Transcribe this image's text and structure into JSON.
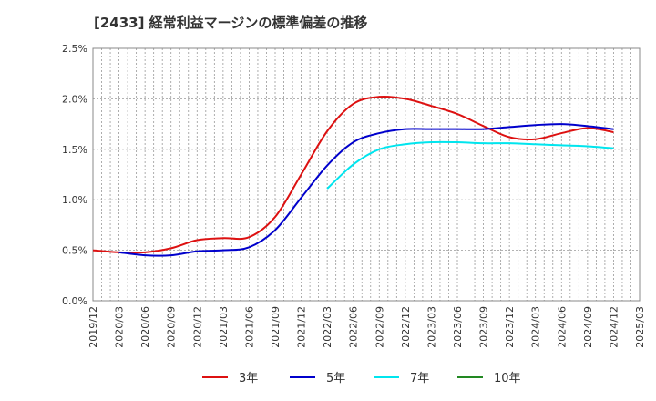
{
  "chart_data": {
    "type": "line",
    "title": "[2433]  経常利益マージンの標準偏差の推移",
    "xlabel": "",
    "ylabel": "",
    "x": [
      "2019/12",
      "2020/03",
      "2020/06",
      "2020/09",
      "2020/12",
      "2021/03",
      "2021/06",
      "2021/09",
      "2021/12",
      "2022/03",
      "2022/06",
      "2022/09",
      "2022/12",
      "2023/03",
      "2023/06",
      "2023/09",
      "2023/12",
      "2024/03",
      "2024/06",
      "2024/09",
      "2024/12",
      "2025/03"
    ],
    "ylim": [
      0,
      2.5
    ],
    "yticks": [
      0,
      0.5,
      1.0,
      1.5,
      2.0,
      2.5
    ],
    "ytick_labels": [
      "0.0%",
      "0.5%",
      "1.0%",
      "1.5%",
      "2.0%",
      "2.5%"
    ],
    "grid": "on",
    "legend_position": "bottom",
    "series": [
      {
        "name": "3年",
        "color": "#dd1111",
        "values": [
          0.5,
          0.48,
          0.48,
          0.52,
          0.6,
          0.62,
          0.63,
          0.83,
          1.25,
          1.68,
          1.95,
          2.02,
          2.0,
          1.93,
          1.85,
          1.73,
          1.62,
          1.6,
          1.66,
          1.71,
          1.67,
          null
        ]
      },
      {
        "name": "5年",
        "color": "#0000cc",
        "values": [
          null,
          0.48,
          0.45,
          0.45,
          0.49,
          0.5,
          0.53,
          0.7,
          1.02,
          1.34,
          1.57,
          1.66,
          1.7,
          1.7,
          1.7,
          1.7,
          1.72,
          1.74,
          1.75,
          1.73,
          1.7,
          null
        ]
      },
      {
        "name": "7年",
        "color": "#00e5ee",
        "values": [
          null,
          null,
          null,
          null,
          null,
          null,
          null,
          null,
          null,
          1.11,
          1.35,
          1.5,
          1.55,
          1.57,
          1.57,
          1.56,
          1.56,
          1.55,
          1.54,
          1.53,
          1.51,
          null
        ]
      },
      {
        "name": "10年",
        "color": "#228822",
        "values": [
          null,
          null,
          null,
          null,
          null,
          null,
          null,
          null,
          null,
          null,
          null,
          null,
          null,
          null,
          null,
          null,
          null,
          null,
          null,
          null,
          null,
          null
        ]
      }
    ]
  }
}
